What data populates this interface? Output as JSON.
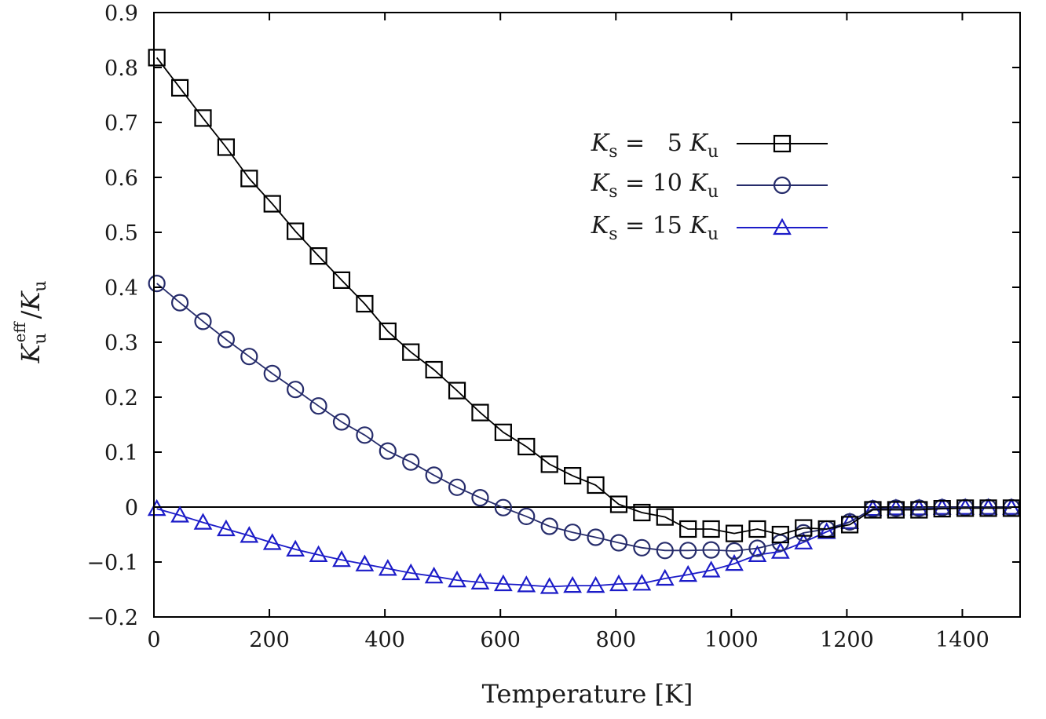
{
  "chart_data": {
    "type": "line",
    "title": "",
    "xlabel": "Temperature [K]",
    "ylabel": {
      "main": "K",
      "main_sub": "u",
      "main_sup": "eff",
      "slash": "/",
      "denom": "K",
      "denom_sub": "u"
    },
    "xlim": [
      0,
      1500
    ],
    "ylim": [
      -0.2,
      0.9
    ],
    "xticks": [
      0,
      200,
      400,
      600,
      800,
      1000,
      1200,
      1400
    ],
    "yticks": [
      -0.2,
      -0.1,
      0,
      0.1,
      0.2,
      0.3,
      0.4,
      0.5,
      0.6,
      0.7,
      0.8,
      0.9
    ],
    "ytick_labels": [
      "−0.2",
      "−0.1",
      "0",
      "0.1",
      "0.2",
      "0.3",
      "0.4",
      "0.5",
      "0.6",
      "0.7",
      "0.8",
      "0.9"
    ],
    "zero_line": true,
    "grid": false,
    "legend_position": "upper-right",
    "x": [
      5,
      45,
      85,
      125,
      165,
      205,
      245,
      285,
      325,
      365,
      405,
      445,
      485,
      525,
      565,
      605,
      645,
      685,
      725,
      765,
      805,
      845,
      885,
      925,
      965,
      1005,
      1045,
      1085,
      1125,
      1165,
      1205,
      1245,
      1285,
      1325,
      1365,
      1405,
      1445,
      1485
    ],
    "series": [
      {
        "name": "Ks = 5 Ku",
        "legend": {
          "k": "K",
          "k_sub": "s",
          "eq": " =   5 ",
          "ku": "K",
          "ku_sub": "u"
        },
        "marker": "square",
        "color": "#000000",
        "values": [
          0.818,
          0.763,
          0.708,
          0.655,
          0.598,
          0.552,
          0.502,
          0.457,
          0.413,
          0.37,
          0.32,
          0.282,
          0.25,
          0.212,
          0.172,
          0.136,
          0.11,
          0.078,
          0.057,
          0.04,
          0.005,
          -0.01,
          -0.018,
          -0.04,
          -0.04,
          -0.048,
          -0.04,
          -0.05,
          -0.038,
          -0.04,
          -0.032,
          -0.005,
          -0.005,
          -0.005,
          -0.003,
          -0.002,
          -0.002,
          -0.002
        ]
      },
      {
        "name": "Ks = 10 Ku",
        "legend": {
          "k": "K",
          "k_sub": "s",
          "eq": " = 10 ",
          "ku": "K",
          "ku_sub": "u"
        },
        "marker": "circle",
        "color": "#262c6b",
        "values": [
          0.407,
          0.372,
          0.338,
          0.305,
          0.274,
          0.243,
          0.214,
          0.184,
          0.155,
          0.131,
          0.102,
          0.082,
          0.058,
          0.036,
          0.017,
          -0.001,
          -0.017,
          -0.035,
          -0.046,
          -0.055,
          -0.065,
          -0.074,
          -0.079,
          -0.079,
          -0.078,
          -0.08,
          -0.075,
          -0.065,
          -0.047,
          -0.04,
          -0.027,
          -0.003,
          -0.002,
          -0.002,
          -0.001,
          -0.001,
          -0.001,
          -0.001
        ]
      },
      {
        "name": "Ks = 15 Ku",
        "legend": {
          "k": "K",
          "k_sub": "s",
          "eq": " = 15 ",
          "ku": "K",
          "ku_sub": "u"
        },
        "marker": "triangle",
        "color": "#1c1cc8",
        "values": [
          -0.003,
          -0.015,
          -0.028,
          -0.04,
          -0.052,
          -0.065,
          -0.077,
          -0.087,
          -0.096,
          -0.104,
          -0.112,
          -0.12,
          -0.126,
          -0.133,
          -0.137,
          -0.14,
          -0.142,
          -0.145,
          -0.143,
          -0.143,
          -0.14,
          -0.139,
          -0.13,
          -0.123,
          -0.115,
          -0.103,
          -0.087,
          -0.081,
          -0.064,
          -0.045,
          -0.027,
          -0.003,
          -0.002,
          -0.002,
          -0.001,
          -0.001,
          -0.001,
          -0.001
        ]
      }
    ]
  }
}
